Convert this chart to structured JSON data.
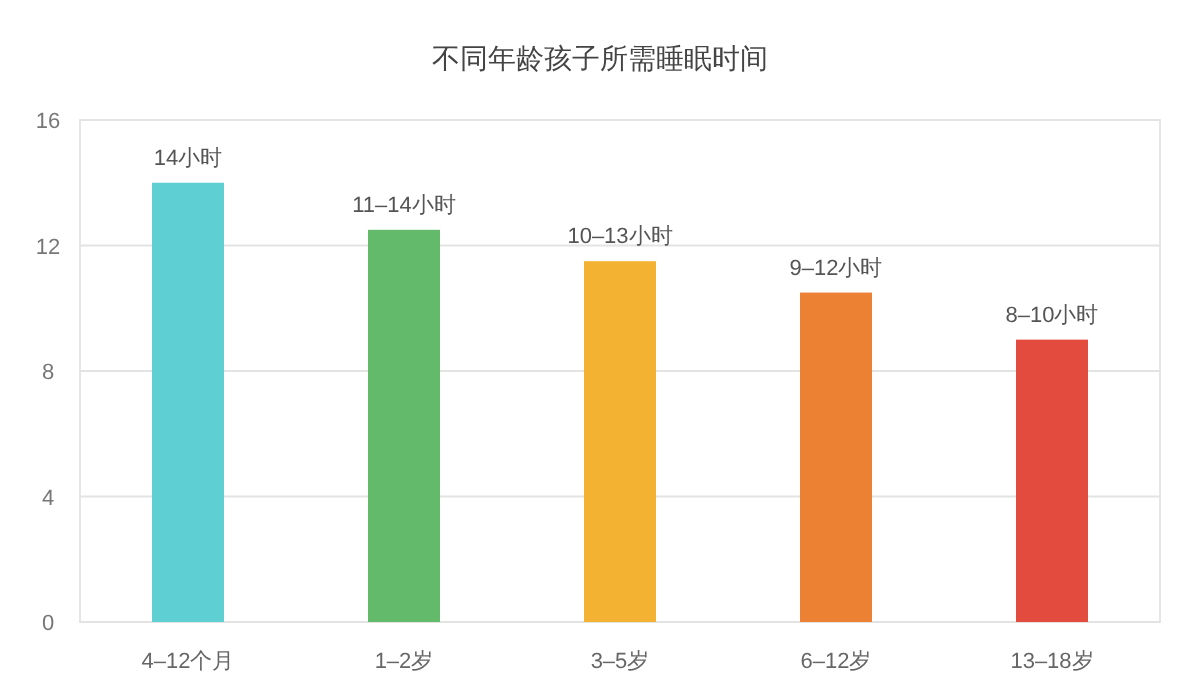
{
  "chart_data": {
    "type": "bar",
    "title": "不同年龄孩子所需睡眠时间",
    "categories": [
      "4–12个月",
      "1–2岁",
      "3–5岁",
      "6–12岁",
      "13–18岁"
    ],
    "values": [
      14,
      12.5,
      11.5,
      10.5,
      9
    ],
    "colors": [
      "#5ecfd3",
      "#63ba6b",
      "#f3b232",
      "#ec8133",
      "#e34b3f"
    ],
    "value_labels": [
      "14小时",
      "11–14小时",
      "10–13小时",
      "9–12小时",
      "8–10小时"
    ],
    "ylim": [
      0,
      16
    ],
    "yticks": [
      0,
      4,
      8,
      12,
      16
    ],
    "grid": "y"
  }
}
